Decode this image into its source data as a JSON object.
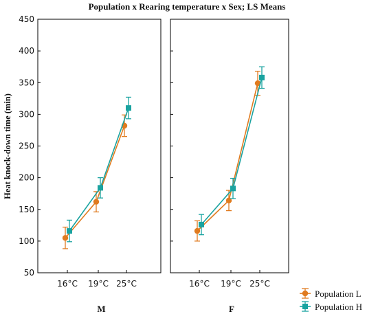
{
  "chart_data": {
    "type": "line",
    "title": "Population x Rearing temperature x Sex; LS Means",
    "ylabel": "Heat knock-down time (min)",
    "ylim": [
      50,
      450
    ],
    "yticks": [
      50,
      100,
      150,
      200,
      250,
      300,
      350,
      400,
      450
    ],
    "categories": [
      "16°C",
      "19°C",
      "25°C"
    ],
    "grid": false,
    "legend_position": "bottom-right",
    "panels": [
      {
        "label": "M",
        "series": [
          {
            "name": "Population L",
            "values": [
              105,
              162,
              282
            ],
            "err": [
              17,
              16,
              17
            ]
          },
          {
            "name": "Population H",
            "values": [
              116,
              184,
              310
            ],
            "err": [
              17,
              16,
              17
            ]
          }
        ]
      },
      {
        "label": "F",
        "series": [
          {
            "name": "Population L",
            "values": [
              116,
              164,
              349
            ],
            "err": [
              16,
              16,
              19
            ]
          },
          {
            "name": "Population H",
            "values": [
              126,
              183,
              358
            ],
            "err": [
              16,
              16,
              17
            ]
          }
        ]
      }
    ],
    "colors": {
      "Population L": "#e07b1f",
      "Population H": "#1aa3a0"
    },
    "markers": {
      "Population L": "circle",
      "Population H": "square"
    }
  }
}
